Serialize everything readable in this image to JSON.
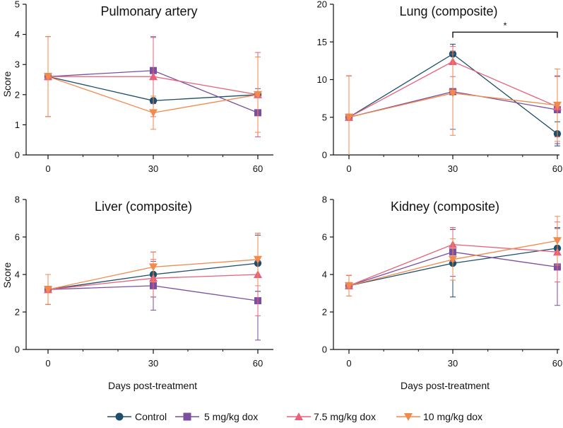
{
  "series_styles": [
    {
      "name": "Control",
      "color": "#1d4e6b",
      "marker": "circle"
    },
    {
      "name": "5 mg/kg dox",
      "color": "#7b4fa0",
      "marker": "square"
    },
    {
      "name": "7.5 mg/kg dox",
      "color": "#e8607a",
      "marker": "triangle-up"
    },
    {
      "name": "10 mg/kg dox",
      "color": "#f28a4b",
      "marker": "triangle-down"
    }
  ],
  "legend": {
    "items": [
      "Control",
      "5 mg/kg dox",
      "7.5 mg/kg dox",
      "10 mg/kg dox"
    ]
  },
  "chart_data": [
    {
      "type": "line",
      "title": "Pulmonary artery",
      "xlabel": "",
      "ylabel": "Score",
      "x": [
        0,
        30,
        60
      ],
      "xticks": [
        "0",
        "30",
        "60"
      ],
      "ylim": [
        0,
        5
      ],
      "yticks": [
        "0",
        "1",
        "2",
        "3",
        "4",
        "5"
      ],
      "series": [
        {
          "name": "Control",
          "values": [
            2.6,
            1.8,
            2.0
          ],
          "err": [
            1.33,
            0.0,
            0.0
          ]
        },
        {
          "name": "5 mg/kg dox",
          "values": [
            2.6,
            2.8,
            1.4
          ],
          "err": [
            1.33,
            1.1,
            0.8
          ]
        },
        {
          "name": "7.5 mg/kg dox",
          "values": [
            2.6,
            2.6,
            2.0
          ],
          "err": [
            1.33,
            1.33,
            1.4
          ]
        },
        {
          "name": "10 mg/kg dox",
          "values": [
            2.6,
            1.4,
            2.0
          ],
          "err": [
            1.33,
            0.55,
            1.25
          ]
        }
      ]
    },
    {
      "type": "line",
      "title": "Lung (composite)",
      "xlabel": "",
      "ylabel": "",
      "x": [
        0,
        30,
        60
      ],
      "xticks": [
        "0",
        "30",
        "60"
      ],
      "ylim": [
        0,
        20
      ],
      "yticks": [
        "0",
        "5",
        "10",
        "15",
        "20"
      ],
      "series": [
        {
          "name": "Control",
          "values": [
            5.0,
            13.4,
            2.8
          ],
          "err": [
            5.5,
            1.3,
            1.6
          ]
        },
        {
          "name": "5 mg/kg dox",
          "values": [
            5.0,
            8.4,
            6.0
          ],
          "err": [
            5.5,
            5.0,
            4.5
          ]
        },
        {
          "name": "7.5 mg/kg dox",
          "values": [
            5.0,
            12.4,
            6.4
          ],
          "err": [
            5.5,
            2.0,
            4.0
          ]
        },
        {
          "name": "10 mg/kg dox",
          "values": [
            5.0,
            8.2,
            6.6
          ],
          "err": [
            5.5,
            5.6,
            4.8
          ]
        }
      ],
      "annotation": {
        "text": "*",
        "x_from": 30,
        "x_to": 60,
        "y": 16.3
      }
    },
    {
      "type": "line",
      "title": "Liver (composite)",
      "xlabel": "Days post-treatment",
      "ylabel": "Score",
      "x": [
        0,
        30,
        60
      ],
      "xticks": [
        "0",
        "30",
        "60"
      ],
      "ylim": [
        0,
        8
      ],
      "yticks": [
        "0",
        "2",
        "4",
        "6",
        "8"
      ],
      "series": [
        {
          "name": "Control",
          "values": [
            3.2,
            4.0,
            4.6
          ],
          "err": [
            0.8,
            1.2,
            1.5
          ]
        },
        {
          "name": "5 mg/kg dox",
          "values": [
            3.2,
            3.4,
            2.6
          ],
          "err": [
            0.8,
            1.3,
            2.1
          ]
        },
        {
          "name": "7.5 mg/kg dox",
          "values": [
            3.2,
            3.8,
            4.0
          ],
          "err": [
            0.8,
            1.0,
            2.2
          ]
        },
        {
          "name": "10 mg/kg dox",
          "values": [
            3.2,
            4.4,
            4.8
          ],
          "err": [
            0.8,
            0.8,
            1.4
          ]
        }
      ]
    },
    {
      "type": "line",
      "title": "Kidney (composite)",
      "xlabel": "Days post-treatment",
      "ylabel": "",
      "x": [
        0,
        30,
        60
      ],
      "xticks": [
        "0",
        "30",
        "60"
      ],
      "ylim": [
        0,
        8
      ],
      "yticks": [
        "0",
        "2",
        "4",
        "6",
        "8"
      ],
      "series": [
        {
          "name": "Control",
          "values": [
            3.4,
            4.6,
            5.4
          ],
          "err": [
            0.55,
            1.8,
            1.1
          ]
        },
        {
          "name": "5 mg/kg dox",
          "values": [
            3.4,
            5.2,
            4.4
          ],
          "err": [
            0.55,
            1.3,
            2.05
          ]
        },
        {
          "name": "7.5 mg/kg dox",
          "values": [
            3.4,
            5.6,
            5.2
          ],
          "err": [
            0.55,
            0.9,
            1.6
          ]
        },
        {
          "name": "10 mg/kg dox",
          "values": [
            3.4,
            4.8,
            5.8
          ],
          "err": [
            0.55,
            1.1,
            1.3
          ]
        }
      ]
    }
  ]
}
